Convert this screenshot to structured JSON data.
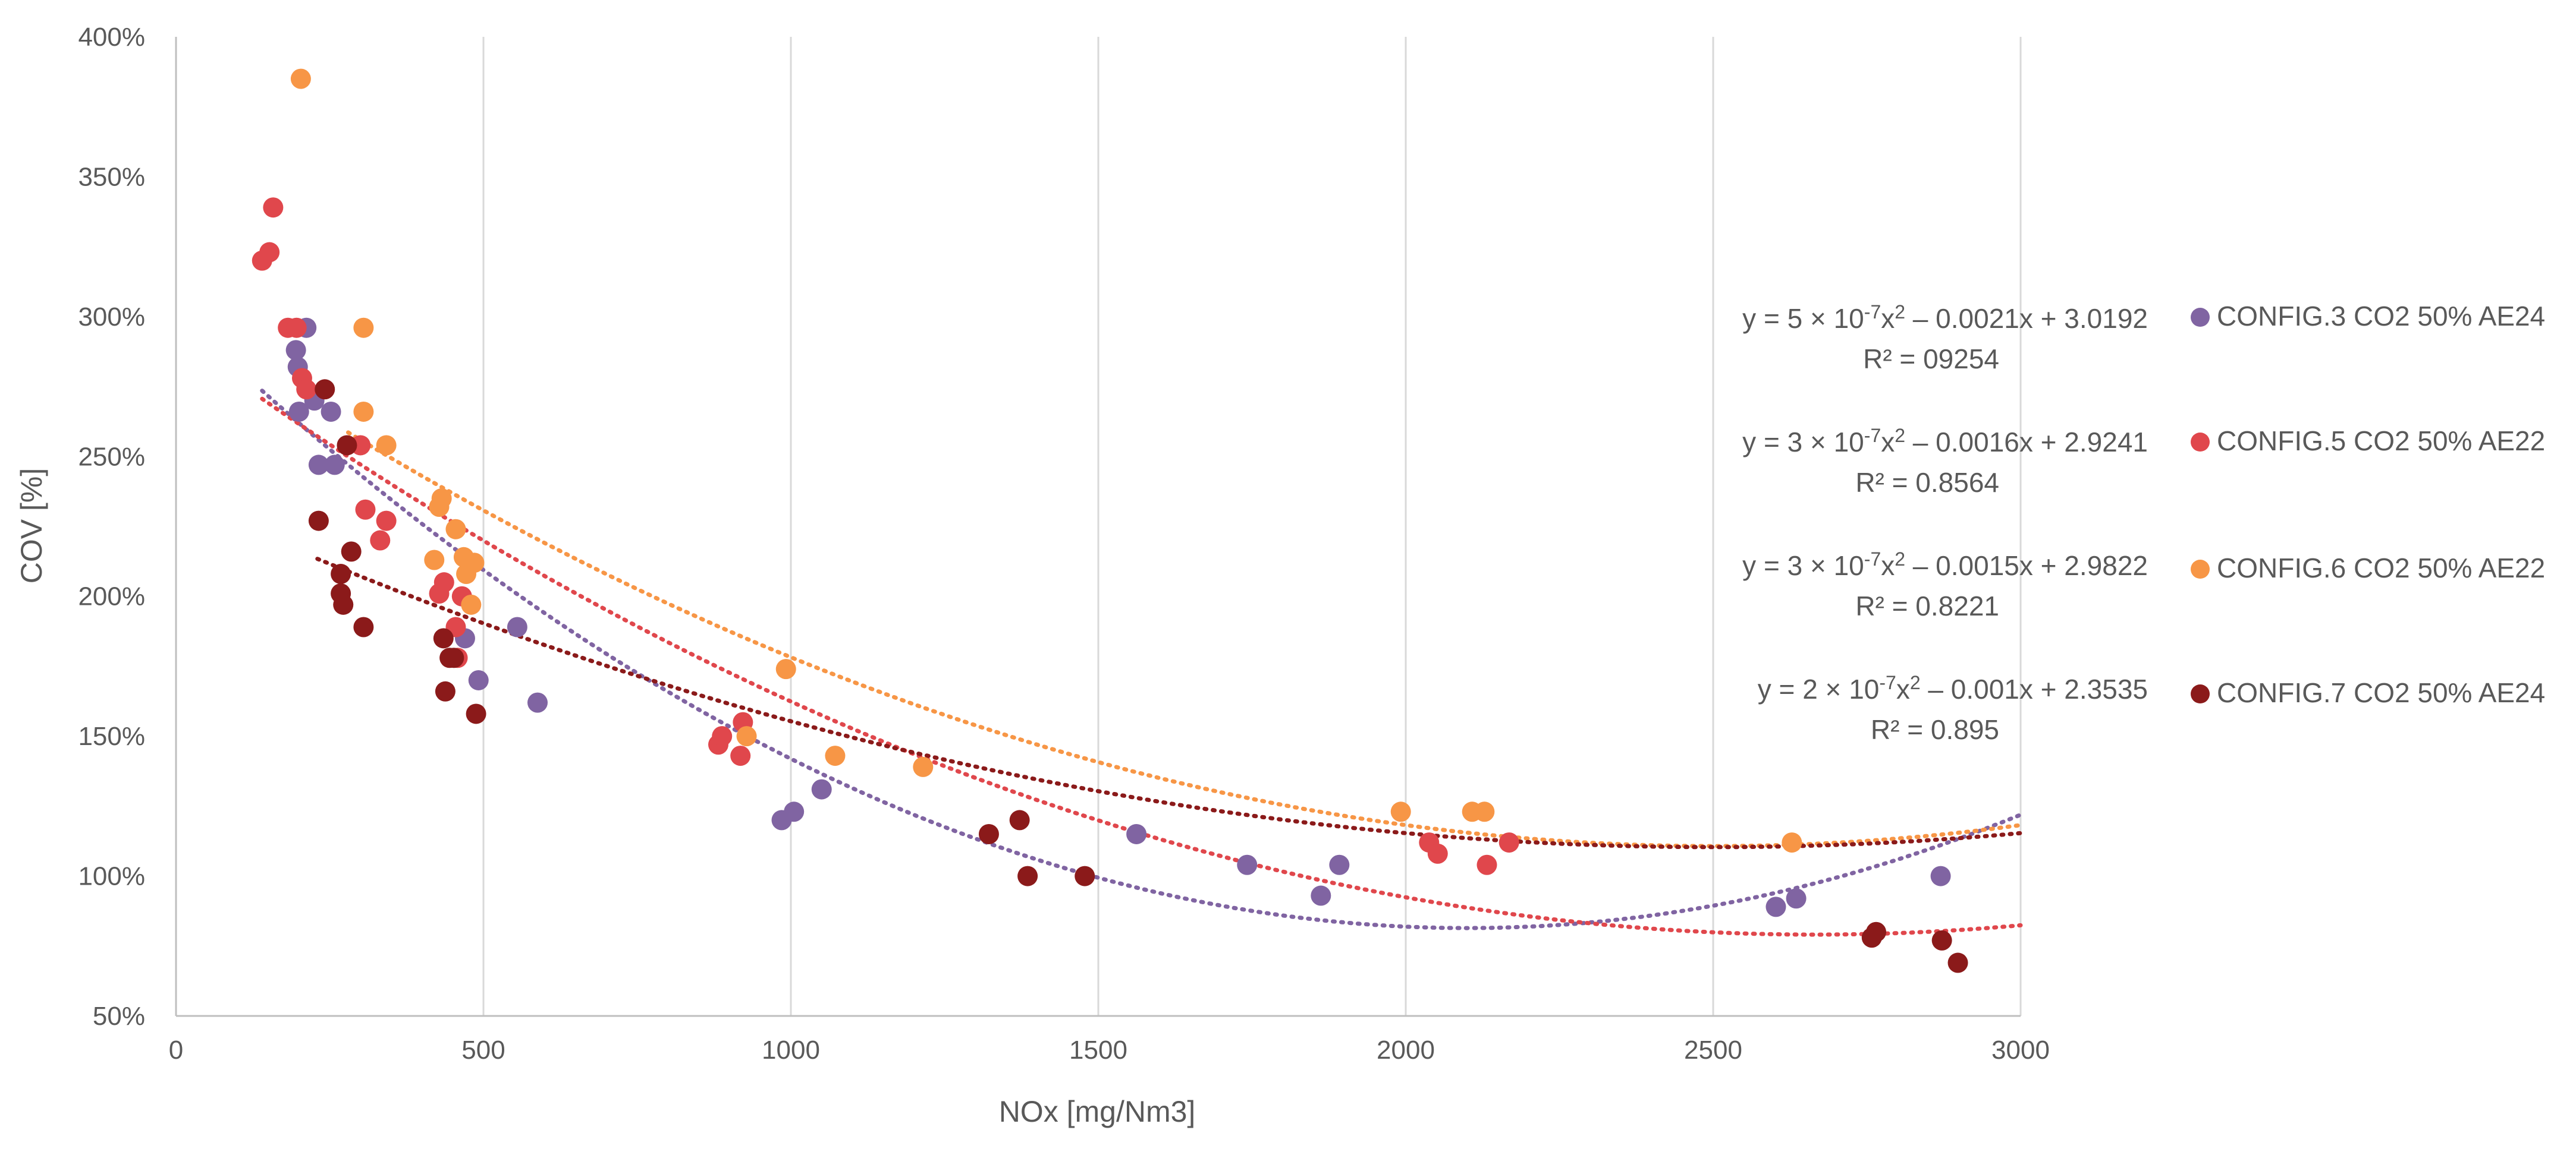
{
  "chart_data": {
    "type": "scatter",
    "title": "",
    "xlabel": "NOx [mg/Nm3]",
    "ylabel": "COV [%]",
    "xlim": [
      0,
      3000
    ],
    "ylim": [
      0.5,
      4.0
    ],
    "x_ticks": [
      0,
      500,
      1000,
      1500,
      2000,
      2500,
      3000
    ],
    "y_ticks": [
      0.5,
      1.0,
      1.5,
      2.0,
      2.5,
      3.0,
      3.5,
      4.0
    ],
    "x_tick_labels": [
      "0",
      "500",
      "1000",
      "1500",
      "2000",
      "2500",
      "3000"
    ],
    "y_tick_labels": [
      "50%",
      "100%",
      "150%",
      "200%",
      "250%",
      "300%",
      "350%",
      "400%"
    ],
    "grid": "vertical",
    "legend_position": "right",
    "series": [
      {
        "name": "CONFIG.3 CO2 50% AE24",
        "color": "#8064a2",
        "trendline": {
          "equation": "y = 5 × 10-7x2 – 0.0021x + 3.0192",
          "equation_parts": {
            "a": "y = 5 × 10",
            "exp": "-7",
            "b": "x",
            "sq": "2",
            "rest": " – 0.0021x + 3.0192"
          },
          "r2": "R² = 09254",
          "coefficients": [
            5e-07,
            -0.0021,
            3.0192
          ],
          "x_range": [
            140,
            3000
          ]
        },
        "points": [
          [
            195,
            2.88
          ],
          [
            198,
            2.82
          ],
          [
            200,
            2.66
          ],
          [
            212,
            2.96
          ],
          [
            225,
            2.7
          ],
          [
            232,
            2.47
          ],
          [
            252,
            2.66
          ],
          [
            258,
            2.47
          ],
          [
            470,
            1.85
          ],
          [
            492,
            1.7
          ],
          [
            555,
            1.89
          ],
          [
            588,
            1.62
          ],
          [
            985,
            1.2
          ],
          [
            1005,
            1.23
          ],
          [
            1050,
            1.31
          ],
          [
            1562,
            1.15
          ],
          [
            1742,
            1.04
          ],
          [
            1862,
            0.93
          ],
          [
            1892,
            1.04
          ],
          [
            2602,
            0.89
          ],
          [
            2635,
            0.92
          ],
          [
            2870,
            1.0
          ]
        ]
      },
      {
        "name": "CONFIG.5 CO2 50% AE22",
        "color": "#e0474c",
        "trendline": {
          "equation": "y = 3 × 10-7x2 – 0.0016x + 2.9241",
          "equation_parts": {
            "a": "y = 3 × 10",
            "exp": "-7",
            "b": "x",
            "sq": "2",
            "rest": " – 0.0016x + 2.9241"
          },
          "r2": "R² = 0.8564",
          "coefficients": [
            3e-07,
            -0.0016,
            2.9241
          ],
          "x_range": [
            140,
            3000
          ]
        },
        "points": [
          [
            140,
            3.2
          ],
          [
            152,
            3.23
          ],
          [
            158,
            3.39
          ],
          [
            182,
            2.96
          ],
          [
            196,
            2.96
          ],
          [
            205,
            2.78
          ],
          [
            212,
            2.74
          ],
          [
            300,
            2.54
          ],
          [
            308,
            2.31
          ],
          [
            332,
            2.2
          ],
          [
            342,
            2.27
          ],
          [
            428,
            2.01
          ],
          [
            436,
            2.05
          ],
          [
            455,
            1.89
          ],
          [
            458,
            1.78
          ],
          [
            465,
            2.0
          ],
          [
            882,
            1.47
          ],
          [
            888,
            1.5
          ],
          [
            918,
            1.43
          ],
          [
            922,
            1.55
          ],
          [
            2038,
            1.12
          ],
          [
            2052,
            1.08
          ],
          [
            2132,
            1.04
          ],
          [
            2168,
            1.12
          ]
        ]
      },
      {
        "name": "CONFIG.6 CO2 50% AE22",
        "color": "#f79646",
        "trendline": {
          "equation": "y = 3 × 10-7x2 – 0.0015x + 2.9822",
          "equation_parts": {
            "a": "y = 3 × 10",
            "exp": "-7",
            "b": "x",
            "sq": "2",
            "rest": " – 0.0015x + 2.9822"
          },
          "r2": "R² = 0.8221",
          "coefficients": [
            3e-07,
            -0.0015,
            2.9822
          ],
          "x_range": [
            280,
            3000
          ]
        },
        "points": [
          [
            203,
            3.85
          ],
          [
            305,
            2.96
          ],
          [
            305,
            2.66
          ],
          [
            342,
            2.54
          ],
          [
            420,
            2.13
          ],
          [
            428,
            2.32
          ],
          [
            432,
            2.35
          ],
          [
            455,
            2.24
          ],
          [
            468,
            2.14
          ],
          [
            472,
            2.08
          ],
          [
            480,
            1.97
          ],
          [
            485,
            2.12
          ],
          [
            928,
            1.5
          ],
          [
            992,
            1.74
          ],
          [
            1072,
            1.43
          ],
          [
            1215,
            1.39
          ],
          [
            1992,
            1.23
          ],
          [
            2108,
            1.23
          ],
          [
            2128,
            1.23
          ],
          [
            2628,
            1.12
          ]
        ]
      },
      {
        "name": "CONFIG.7 CO2 50% AE24",
        "color": "#8b1a1a",
        "trendline": {
          "equation": "y = 2 × 10-7x2 – 0.001x + 2.3535",
          "equation_parts": {
            "a": "y = 2 × 10",
            "exp": "-7",
            "b": "x",
            "sq": "2",
            "rest": " – 0.001x + 2.3535"
          },
          "r2": "R² = 0.895",
          "coefficients": [
            2e-07,
            -0.001,
            2.3535
          ],
          "x_range": [
            230,
            3000
          ]
        },
        "points": [
          [
            232,
            2.27
          ],
          [
            242,
            2.74
          ],
          [
            268,
            2.08
          ],
          [
            268,
            2.01
          ],
          [
            272,
            1.97
          ],
          [
            278,
            2.54
          ],
          [
            285,
            2.16
          ],
          [
            305,
            1.89
          ],
          [
            435,
            1.85
          ],
          [
            438,
            1.66
          ],
          [
            445,
            1.78
          ],
          [
            452,
            1.78
          ],
          [
            488,
            1.58
          ],
          [
            1322,
            1.15
          ],
          [
            1372,
            1.2
          ],
          [
            1385,
            1.0
          ],
          [
            1478,
            1.0
          ],
          [
            2758,
            0.78
          ],
          [
            2765,
            0.8
          ],
          [
            2872,
            0.77
          ],
          [
            2898,
            0.69
          ]
        ]
      }
    ]
  }
}
